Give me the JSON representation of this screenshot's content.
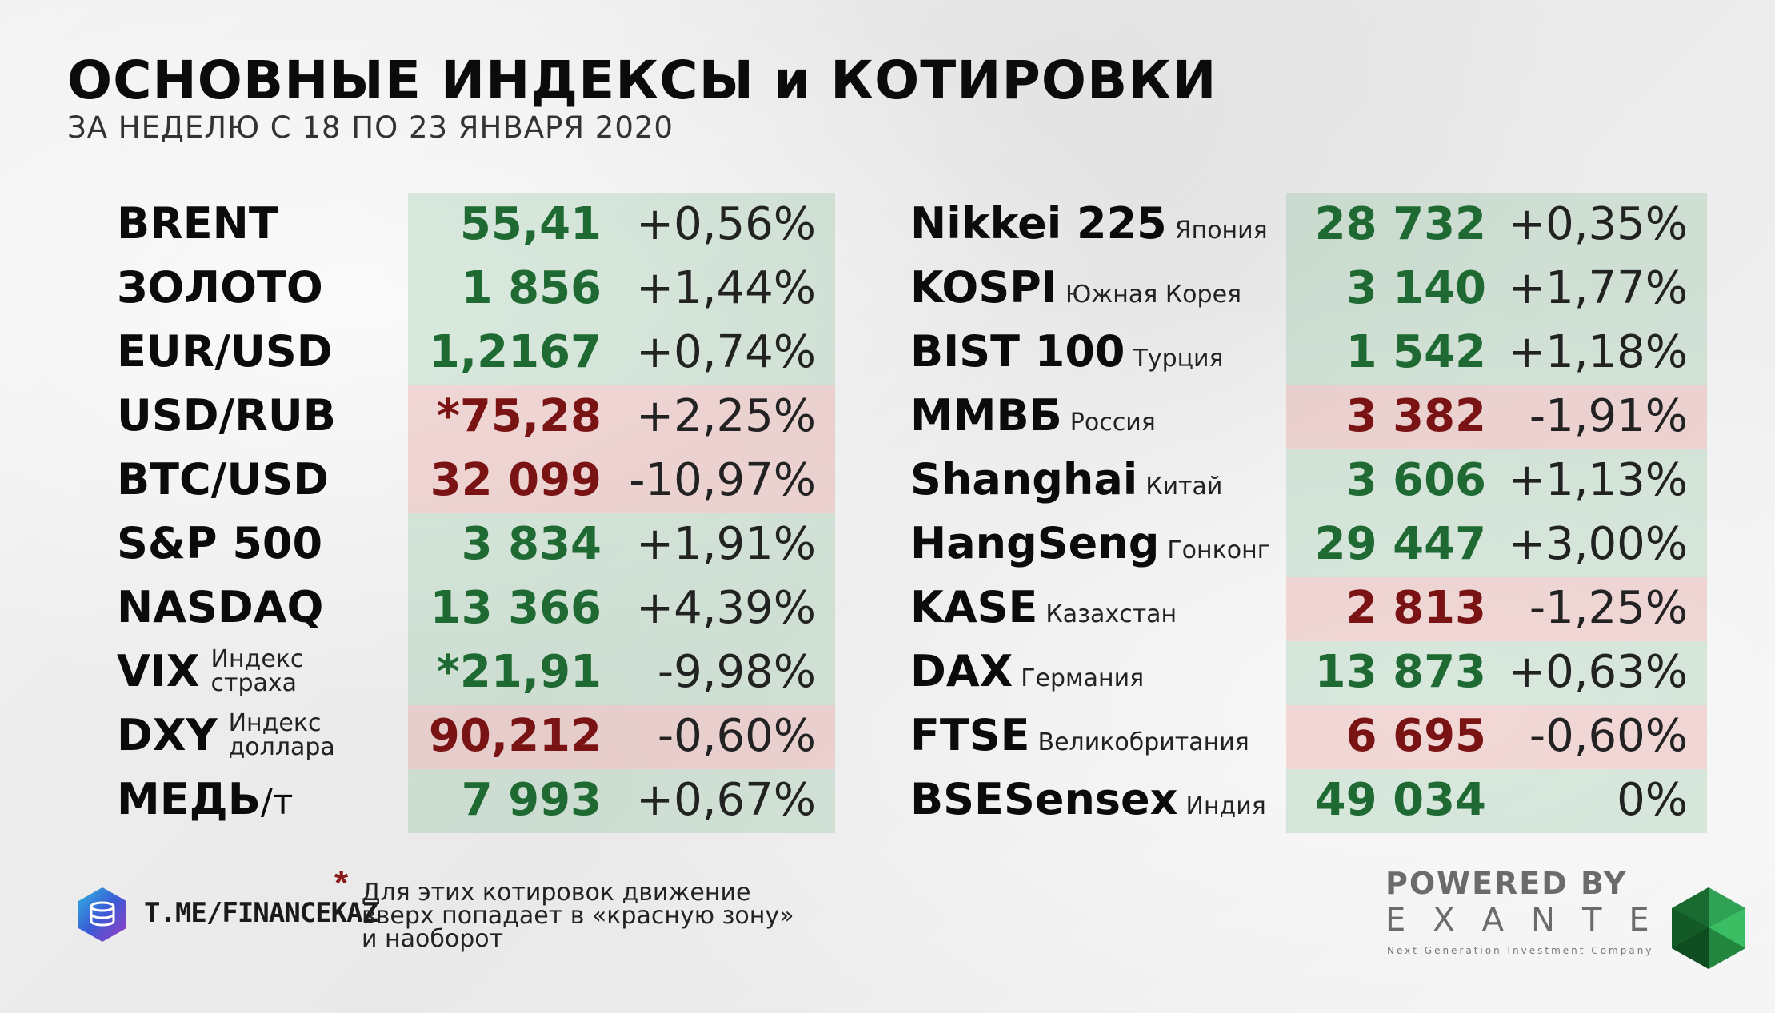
{
  "title": "ОСНОВНЫЕ ИНДЕКСЫ и КОТИРОВКИ",
  "subtitle": "ЗА НЕДЕЛЮ С 18 ПО 23 ЯНВАРЯ 2020",
  "left_rows": [
    {
      "name": "BRENT",
      "value": "55,41",
      "change": "+0,56%",
      "zone": "green"
    },
    {
      "name": "ЗОЛОТО",
      "value": "1 856",
      "change": "+1,44%",
      "zone": "green"
    },
    {
      "name": "EUR/USD",
      "value": "1,2167",
      "change": "+0,74%",
      "zone": "green"
    },
    {
      "name": "USD/RUB",
      "value": "*75,28",
      "change": "+2,25%",
      "zone": "red"
    },
    {
      "name": "BTC/USD",
      "value": "32 099",
      "change": "-10,97%",
      "zone": "red"
    },
    {
      "name": "S&P 500",
      "value": "3 834",
      "change": "+1,91%",
      "zone": "green"
    },
    {
      "name": "NASDAQ",
      "value": "13 366",
      "change": "+4,39%",
      "zone": "green"
    },
    {
      "name": "VIX",
      "sub1": "Индекс",
      "sub2": "страха",
      "value": "*21,91",
      "change": "-9,98%",
      "zone": "green"
    },
    {
      "name": "DXY",
      "sub1": "Индекс",
      "sub2": "доллара",
      "value": "90,212",
      "change": "-0,60%",
      "zone": "red"
    },
    {
      "name": "МЕДЬ",
      "unit": "/т",
      "value": "7 993",
      "change": "+0,67%",
      "zone": "green"
    }
  ],
  "right_rows": [
    {
      "name": "Nikkei 225",
      "country": "Япония",
      "value": "28 732",
      "change": "+0,35%",
      "zone": "green"
    },
    {
      "name": "KOSPI",
      "country": "Южная Корея",
      "value": "3 140",
      "change": "+1,77%",
      "zone": "green"
    },
    {
      "name": "BIST 100",
      "country": "Турция",
      "value": "1 542",
      "change": "+1,18%",
      "zone": "green"
    },
    {
      "name": "ММВБ",
      "country": "Россия",
      "value": "3 382",
      "change": "-1,91%",
      "zone": "red"
    },
    {
      "name": "Shanghai",
      "country": "Китай",
      "value": "3 606",
      "change": "+1,13%",
      "zone": "green"
    },
    {
      "name": "HangSeng",
      "country": "Гонконг",
      "value": "29 447",
      "change": "+3,00%",
      "zone": "green"
    },
    {
      "name": "KASE",
      "country": "Казахстан",
      "value": "2 813",
      "change": "-1,25%",
      "zone": "red"
    },
    {
      "name": "DAX",
      "country": "Германия",
      "value": "13 873",
      "change": "+0,63%",
      "zone": "green"
    },
    {
      "name": "FTSE",
      "country": "Великобритания",
      "value": "6 695",
      "change": "-0,60%",
      "zone": "red"
    },
    {
      "name": "BSESensex",
      "country": "Индия",
      "value": "49 034",
      "change": "0%",
      "zone": "green"
    }
  ],
  "footer": {
    "link": "T.ME/FINANCEKAZ",
    "note_star": "*",
    "note_lines": [
      "Для этих котировок движение",
      "вверх попадает в «красную зону»",
      "и наоборот"
    ],
    "powered_by": "POWERED BY",
    "brand": "EXANTE",
    "tagline": "Next Generation Investment Company"
  },
  "colors": {
    "green_value": "#1e6a32",
    "red_value": "#7a1414",
    "green_zone": "#c9e0cf",
    "red_zone": "#ecd0cb"
  },
  "icons": [
    "telegram-coin-logo-icon",
    "exante-gem-icon"
  ]
}
